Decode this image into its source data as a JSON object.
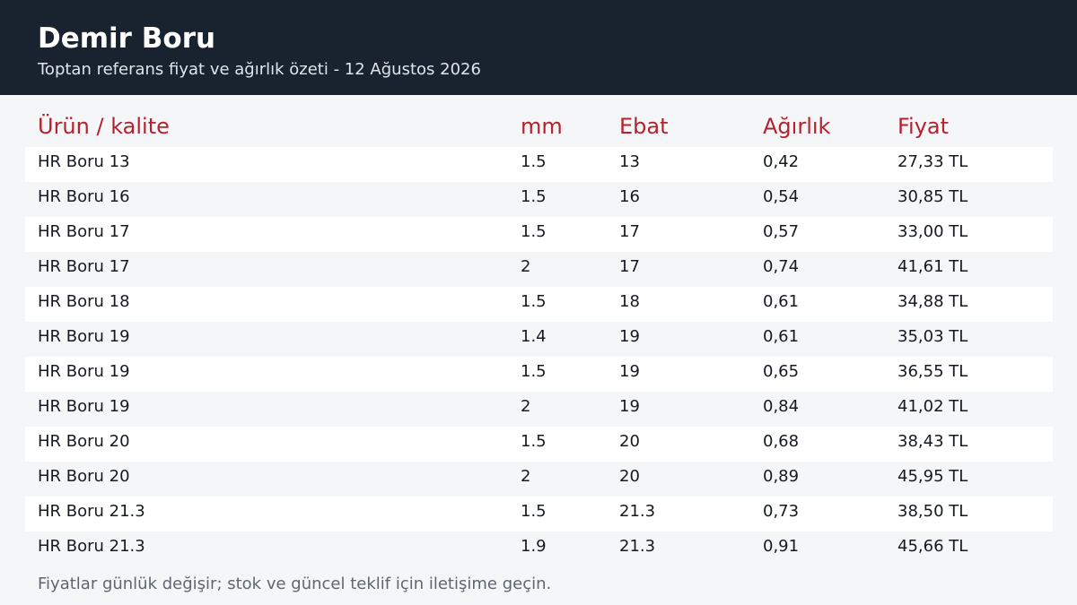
{
  "header": {
    "title": "Demir Boru",
    "subtitle": "Toptan referans fiyat ve ağırlık özeti - 12 Ağustos 2026"
  },
  "table": {
    "columns": [
      "Ürün / kalite",
      "mm",
      "Ebat",
      "Ağırlık",
      "Fiyat"
    ],
    "rows": [
      [
        "HR Boru 13",
        "1.5",
        "13",
        "0,42",
        "27,33 TL"
      ],
      [
        "HR Boru 16",
        "1.5",
        "16",
        "0,54",
        "30,85 TL"
      ],
      [
        "HR Boru 17",
        "1.5",
        "17",
        "0,57",
        "33,00 TL"
      ],
      [
        "HR Boru 17",
        "2",
        "17",
        "0,74",
        "41,61 TL"
      ],
      [
        "HR Boru 18",
        "1.5",
        "18",
        "0,61",
        "34,88 TL"
      ],
      [
        "HR Boru 19",
        "1.4",
        "19",
        "0,61",
        "35,03 TL"
      ],
      [
        "HR Boru 19",
        "1.5",
        "19",
        "0,65",
        "36,55 TL"
      ],
      [
        "HR Boru 19",
        "2",
        "19",
        "0,84",
        "41,02 TL"
      ],
      [
        "HR Boru 20",
        "1.5",
        "20",
        "0,68",
        "38,43 TL"
      ],
      [
        "HR Boru 20",
        "2",
        "20",
        "0,89",
        "45,95 TL"
      ],
      [
        "HR Boru 21.3",
        "1.5",
        "21.3",
        "0,73",
        "38,50 TL"
      ],
      [
        "HR Boru 21.3",
        "1.9",
        "21.3",
        "0,91",
        "45,66 TL"
      ]
    ]
  },
  "footnote": "Fiyatlar günlük değişir; stok ve güncel teklif için iletişime geçin.",
  "colors": {
    "header_bg": "#19222f",
    "accent": "#b5222f",
    "page_bg": "#f4f6f8",
    "row_alt": "#ffffff"
  }
}
